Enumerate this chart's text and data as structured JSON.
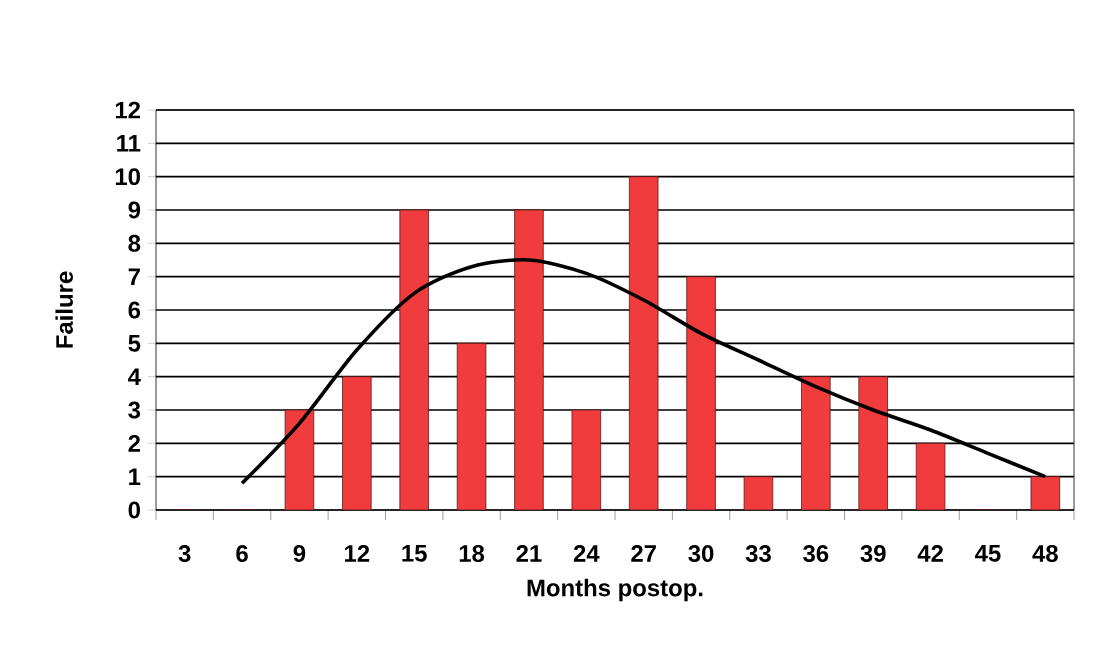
{
  "chart_data": {
    "type": "bar",
    "xlabel": "Months postop.",
    "ylabel": "Failure",
    "categories": [
      "3",
      "6",
      "9",
      "12",
      "15",
      "18",
      "21",
      "24",
      "27",
      "30",
      "33",
      "36",
      "39",
      "42",
      "45",
      "48"
    ],
    "series": [
      {
        "color": "#f03c3c",
        "values": [
          0,
          0,
          3,
          4,
          9,
          5,
          9,
          3,
          10,
          7,
          1,
          4,
          4,
          2,
          0,
          1
        ]
      },
      {
        "type": "line",
        "color": "#000000",
        "values": [
          null,
          0.8,
          2.6,
          4.8,
          6.5,
          7.3,
          7.5,
          7.1,
          6.3,
          5.3,
          4.5,
          3.7,
          3.0,
          2.4,
          1.7,
          1.0
        ]
      }
    ],
    "ylim": [
      0,
      12
    ],
    "yticks": [
      0,
      1,
      2,
      3,
      4,
      5,
      6,
      7,
      8,
      9,
      10,
      11,
      12
    ],
    "grid": "y"
  }
}
